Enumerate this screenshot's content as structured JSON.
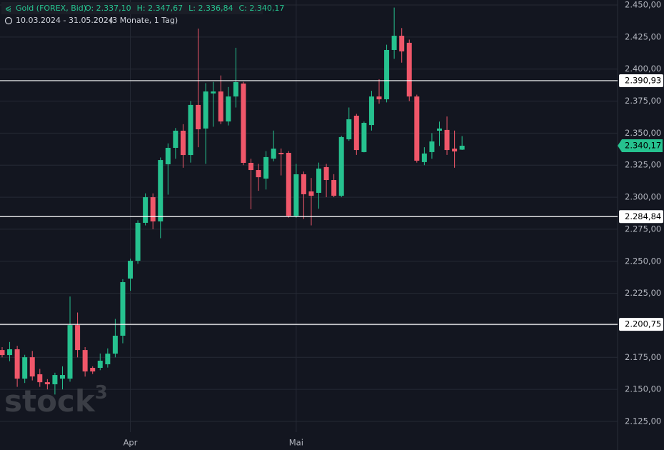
{
  "chart_data": {
    "type": "candlestick",
    "header": {
      "title": "Gold (FOREX, Bid)",
      "ohlc": [
        "O: 2.337,10",
        "H: 2.347,67",
        "L: 2.336,84",
        "C: 2.340,17"
      ],
      "range": "10.03.2024 - 31.05.2024",
      "span": "(3 Monate, 1 Tag)"
    },
    "watermark": {
      "text": "stock",
      "sup": "3"
    },
    "categories": [
      null,
      null,
      null,
      null,
      null,
      null,
      null,
      null,
      null,
      null,
      null,
      null,
      null,
      null,
      null,
      null,
      null,
      "Apr",
      null,
      null,
      null,
      null,
      null,
      null,
      null,
      null,
      null,
      null,
      null,
      null,
      null,
      null,
      null,
      null,
      null,
      null,
      null,
      null,
      null,
      "Mai",
      null,
      null,
      null,
      null,
      null,
      null,
      null,
      null,
      null,
      null,
      null,
      null,
      null,
      null,
      null,
      null,
      null,
      null,
      null,
      null,
      null,
      null
    ],
    "open": [
      2180.7,
      2176.8,
      2181.3,
      2158.4,
      2175.1,
      2161.8,
      2155.6,
      2154.0,
      2158.4,
      2158.4,
      2200.2,
      2180.7,
      2166.8,
      2166.8,
      2169.6,
      2177.9,
      2191.9,
      2236.5,
      2250.4,
      2280.0,
      2300.0,
      2281.1,
      2325.7,
      2338.5,
      2351.9,
      2332.9,
      2372.0,
      2353.6,
      2381.0,
      2382.5,
      2359.1,
      2378.6,
      2388.7,
      2326.8,
      2321.2,
      2314.5,
      2330.1,
      2334.6,
      2334.6,
      2285.5,
      2317.9,
      2304.5,
      2303.4,
      2323.5,
      2313.4,
      2301.1,
      2345.2,
      2363.6,
      2335.2,
      2356.3,
      2378.6,
      2376.4,
      2414.9,
      2426.0,
      2420.5,
      2378.6,
      2327.4,
      2335.2,
      2351.9,
      2352.5,
      2337.9,
      2337.1
    ],
    "high": [
      2183,
      2187,
      2184,
      2177,
      2180,
      2166,
      2158,
      2163,
      2168,
      2222.5,
      2210,
      2183,
      2168,
      2178,
      2182,
      2205,
      2236,
      2252,
      2282,
      2303,
      2303,
      2331,
      2342,
      2354,
      2357,
      2375,
      2431.6,
      2389,
      2390,
      2395,
      2386,
      2416.6,
      2390,
      2330,
      2326,
      2336,
      2352,
      2338,
      2336,
      2326,
      2320,
      2315,
      2327,
      2326,
      2318,
      2348,
      2370,
      2365,
      2359,
      2383,
      2392,
      2419,
      2448,
      2432,
      2423,
      2380,
      2339,
      2350,
      2359,
      2363,
      2352,
      2347.67
    ],
    "low": [
      2175,
      2172,
      2152,
      2155,
      2157,
      2152,
      2150,
      2146,
      2150,
      2156,
      2175,
      2160,
      2162,
      2165,
      2167,
      2175,
      2186,
      2227,
      2248,
      2278,
      2275,
      2268,
      2302,
      2330,
      2323,
      2327,
      2339,
      2326,
      2355,
      2357,
      2356,
      2370,
      2325,
      2290.6,
      2305,
      2306,
      2328,
      2317,
      2284,
      2284,
      2283,
      2278,
      2291,
      2300,
      2300,
      2300,
      2344,
      2333,
      2335,
      2352,
      2373,
      2374,
      2408,
      2405,
      2375,
      2327,
      2325,
      2330,
      2340,
      2333,
      2323,
      2336.84
    ],
    "close": [
      2176.8,
      2181.3,
      2158.4,
      2175.1,
      2160.1,
      2155.6,
      2154.0,
      2161.2,
      2161.2,
      2200.2,
      2180.7,
      2164.0,
      2164.0,
      2172.4,
      2177.9,
      2191.9,
      2233.7,
      2250.4,
      2280.0,
      2300.0,
      2281.1,
      2329.0,
      2338.5,
      2351.9,
      2332.9,
      2372.0,
      2353.0,
      2382.5,
      2382.5,
      2359.1,
      2378.6,
      2389.8,
      2326.8,
      2321.2,
      2315.6,
      2331.3,
      2337.9,
      2333.5,
      2285.5,
      2317.9,
      2302.3,
      2301.1,
      2322.3,
      2313.4,
      2301.1,
      2346.9,
      2360.8,
      2336.8,
      2358.0,
      2378.6,
      2376.4,
      2414.9,
      2426.0,
      2413.8,
      2378.6,
      2328.5,
      2334.1,
      2343.5,
      2353.6,
      2336.8,
      2335.7,
      2340.17
    ],
    "up_color": "#26c28f",
    "down_color": "#f0576a",
    "ylim": [
      2125,
      2450
    ],
    "yticks": [
      {
        "value": 2125,
        "label": "2.125,00"
      },
      {
        "value": 2150,
        "label": "2.150,00"
      },
      {
        "value": 2175,
        "label": "2.175,00"
      },
      {
        "value": 2200,
        "label": "2.200,00"
      },
      {
        "value": 2225,
        "label": "2.225,00"
      },
      {
        "value": 2250,
        "label": "2.250,00"
      },
      {
        "value": 2275,
        "label": "2.275,00"
      },
      {
        "value": 2300,
        "label": "2.300,00"
      },
      {
        "value": 2325,
        "label": "2.325,00"
      },
      {
        "value": 2350,
        "label": "2.350,00"
      },
      {
        "value": 2375,
        "label": "2.375,00"
      },
      {
        "value": 2400,
        "label": "2.400,00"
      },
      {
        "value": 2425,
        "label": "2.425,00"
      },
      {
        "value": 2450,
        "label": "2.450,00"
      }
    ],
    "hlines": [
      {
        "value": 2390.93,
        "label": "2.390,93"
      },
      {
        "value": 2284.84,
        "label": "2.284,84"
      },
      {
        "value": 2200.75,
        "label": "2.200,75"
      }
    ],
    "last_price": {
      "value": 2340.17,
      "label": "2.340,17"
    },
    "grid": true
  }
}
